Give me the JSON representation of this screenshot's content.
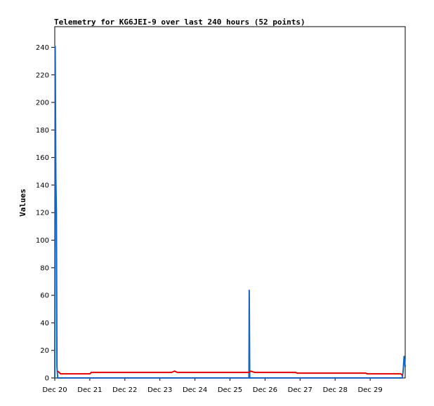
{
  "chart_data": {
    "type": "line",
    "title": "Telemetry for KG6JEI-9 over last 240 hours (52 points)",
    "xlabel": "",
    "ylabel": "Values",
    "xlim": [
      0,
      240
    ],
    "ylim": [
      0,
      255
    ],
    "x_unit": "hours",
    "x_ticks": [
      {
        "x": 0,
        "label": "Dec 20"
      },
      {
        "x": 24,
        "label": "Dec 21"
      },
      {
        "x": 48,
        "label": "Dec 22"
      },
      {
        "x": 72,
        "label": "Dec 23"
      },
      {
        "x": 96,
        "label": "Dec 24"
      },
      {
        "x": 120,
        "label": "Dec 25"
      },
      {
        "x": 144,
        "label": "Dec 26"
      },
      {
        "x": 168,
        "label": "Dec 27"
      },
      {
        "x": 192,
        "label": "Dec 28"
      },
      {
        "x": 216,
        "label": "Dec 29"
      }
    ],
    "y_ticks": [
      0,
      20,
      40,
      60,
      80,
      100,
      120,
      140,
      160,
      180,
      200,
      220,
      240
    ],
    "grid": false,
    "legend": "none",
    "series": [
      {
        "color": "#1565c0",
        "points": [
          [
            0,
            0
          ],
          [
            0.3,
            241
          ],
          [
            0.7,
            145
          ],
          [
            1.1,
            120
          ],
          [
            1.5,
            8
          ],
          [
            2.0,
            0
          ],
          [
            133.0,
            0
          ],
          [
            133.2,
            64
          ],
          [
            133.5,
            0
          ],
          [
            238.0,
            0
          ],
          [
            238.6,
            5
          ],
          [
            239.3,
            16
          ],
          [
            240,
            8
          ]
        ]
      },
      {
        "color": "#e00000",
        "points": [
          [
            2.0,
            5
          ],
          [
            4.0,
            3
          ],
          [
            24.0,
            3
          ],
          [
            25.0,
            4
          ],
          [
            48,
            4
          ],
          [
            80.0,
            4
          ],
          [
            82.0,
            5
          ],
          [
            84.0,
            4
          ],
          [
            120,
            4
          ],
          [
            133.0,
            4
          ],
          [
            134.0,
            5
          ],
          [
            137.0,
            4
          ],
          [
            144,
            4
          ],
          [
            165.0,
            4
          ],
          [
            166.0,
            3.5
          ],
          [
            192,
            3.5
          ],
          [
            213.0,
            3.5
          ],
          [
            214.0,
            3
          ],
          [
            237.0,
            3
          ],
          [
            238.0,
            2
          ]
        ]
      }
    ]
  }
}
